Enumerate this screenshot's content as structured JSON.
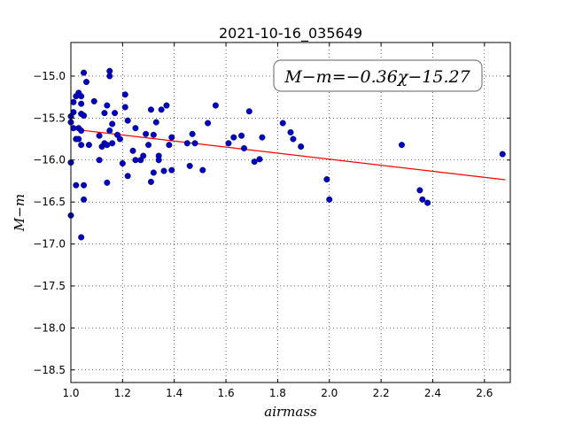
{
  "chart_data": {
    "type": "scatter",
    "title": "2021-10-16_035649",
    "xlabel": "airmass",
    "ylabel": "M−m",
    "xlim": [
      1.0,
      2.7
    ],
    "ylim": [
      -18.65,
      -14.6
    ],
    "y_inverted": true,
    "grid": true,
    "x_ticks": [
      1.0,
      1.2,
      1.4,
      1.6,
      1.8,
      2.0,
      2.2,
      2.4,
      2.6
    ],
    "x_tick_labels": [
      "1.0",
      "1.2",
      "1.4",
      "1.6",
      "1.8",
      "2.0",
      "2.2",
      "2.4",
      "2.6"
    ],
    "y_ticks": [
      -15.0,
      -15.5,
      -16.0,
      -16.5,
      -17.0,
      -17.5,
      -18.0,
      -18.5
    ],
    "y_tick_labels": [
      "−15.0",
      "−15.5",
      "−16.0",
      "−16.5",
      "−17.0",
      "−17.5",
      "−18.0",
      "−18.5"
    ],
    "annotation": "M−m=−0.36χ−15.27",
    "fit": {
      "slope": -0.36,
      "intercept": -15.27,
      "x_range": [
        1.0,
        2.68
      ],
      "color": "#ff0000"
    },
    "marker_color": "#0000bf",
    "series": [
      {
        "points": [
          [
            1.0,
            -16.03
          ],
          [
            1.0,
            -16.66
          ],
          [
            1.0,
            -15.55
          ],
          [
            1.0,
            -15.48
          ],
          [
            1.01,
            -15.31
          ],
          [
            1.01,
            -15.43
          ],
          [
            1.01,
            -15.62
          ],
          [
            1.02,
            -15.24
          ],
          [
            1.02,
            -16.3
          ],
          [
            1.02,
            -15.75
          ],
          [
            1.03,
            -15.62
          ],
          [
            1.03,
            -15.75
          ],
          [
            1.03,
            -15.2
          ],
          [
            1.04,
            -15.24
          ],
          [
            1.04,
            -15.33
          ],
          [
            1.04,
            -15.45
          ],
          [
            1.04,
            -15.65
          ],
          [
            1.04,
            -15.82
          ],
          [
            1.04,
            -16.92
          ],
          [
            1.05,
            -14.96
          ],
          [
            1.05,
            -16.47
          ],
          [
            1.05,
            -16.3
          ],
          [
            1.05,
            -15.47
          ],
          [
            1.06,
            -15.07
          ],
          [
            1.07,
            -15.82
          ],
          [
            1.09,
            -15.3
          ],
          [
            1.11,
            -15.71
          ],
          [
            1.11,
            -16.0
          ],
          [
            1.12,
            -15.84
          ],
          [
            1.13,
            -15.44
          ],
          [
            1.13,
            -15.8
          ],
          [
            1.14,
            -15.35
          ],
          [
            1.14,
            -15.82
          ],
          [
            1.14,
            -16.27
          ],
          [
            1.15,
            -14.94
          ],
          [
            1.15,
            -15.0
          ],
          [
            1.15,
            -15.65
          ],
          [
            1.16,
            -15.57
          ],
          [
            1.16,
            -15.8
          ],
          [
            1.17,
            -15.44
          ],
          [
            1.18,
            -15.7
          ],
          [
            1.19,
            -15.75
          ],
          [
            1.2,
            -16.04
          ],
          [
            1.21,
            -15.22
          ],
          [
            1.21,
            -15.37
          ],
          [
            1.22,
            -15.53
          ],
          [
            1.22,
            -16.19
          ],
          [
            1.24,
            -15.89
          ],
          [
            1.25,
            -15.62
          ],
          [
            1.25,
            -16.0
          ],
          [
            1.27,
            -16.0
          ],
          [
            1.28,
            -15.95
          ],
          [
            1.29,
            -15.69
          ],
          [
            1.3,
            -15.82
          ],
          [
            1.31,
            -16.26
          ],
          [
            1.31,
            -15.4
          ],
          [
            1.32,
            -15.7
          ],
          [
            1.32,
            -16.15
          ],
          [
            1.33,
            -15.55
          ],
          [
            1.34,
            -15.95
          ],
          [
            1.34,
            -16.0
          ],
          [
            1.35,
            -15.4
          ],
          [
            1.36,
            -16.13
          ],
          [
            1.37,
            -15.35
          ],
          [
            1.38,
            -15.82
          ],
          [
            1.39,
            -15.73
          ],
          [
            1.39,
            -16.12
          ],
          [
            1.45,
            -15.8
          ],
          [
            1.46,
            -16.07
          ],
          [
            1.47,
            -15.69
          ],
          [
            1.48,
            -15.8
          ],
          [
            1.51,
            -16.12
          ],
          [
            1.53,
            -15.56
          ],
          [
            1.56,
            -15.35
          ],
          [
            1.61,
            -15.8
          ],
          [
            1.63,
            -15.73
          ],
          [
            1.66,
            -15.71
          ],
          [
            1.67,
            -15.86
          ],
          [
            1.69,
            -15.42
          ],
          [
            1.71,
            -16.02
          ],
          [
            1.73,
            -15.99
          ],
          [
            1.74,
            -15.73
          ],
          [
            1.82,
            -15.56
          ],
          [
            1.85,
            -15.67
          ],
          [
            1.86,
            -15.75
          ],
          [
            1.89,
            -15.84
          ],
          [
            1.99,
            -16.23
          ],
          [
            2.0,
            -16.47
          ],
          [
            2.28,
            -15.82
          ],
          [
            2.35,
            -16.36
          ],
          [
            2.36,
            -16.47
          ],
          [
            2.38,
            -16.51
          ],
          [
            2.67,
            -15.93
          ]
        ]
      }
    ]
  }
}
